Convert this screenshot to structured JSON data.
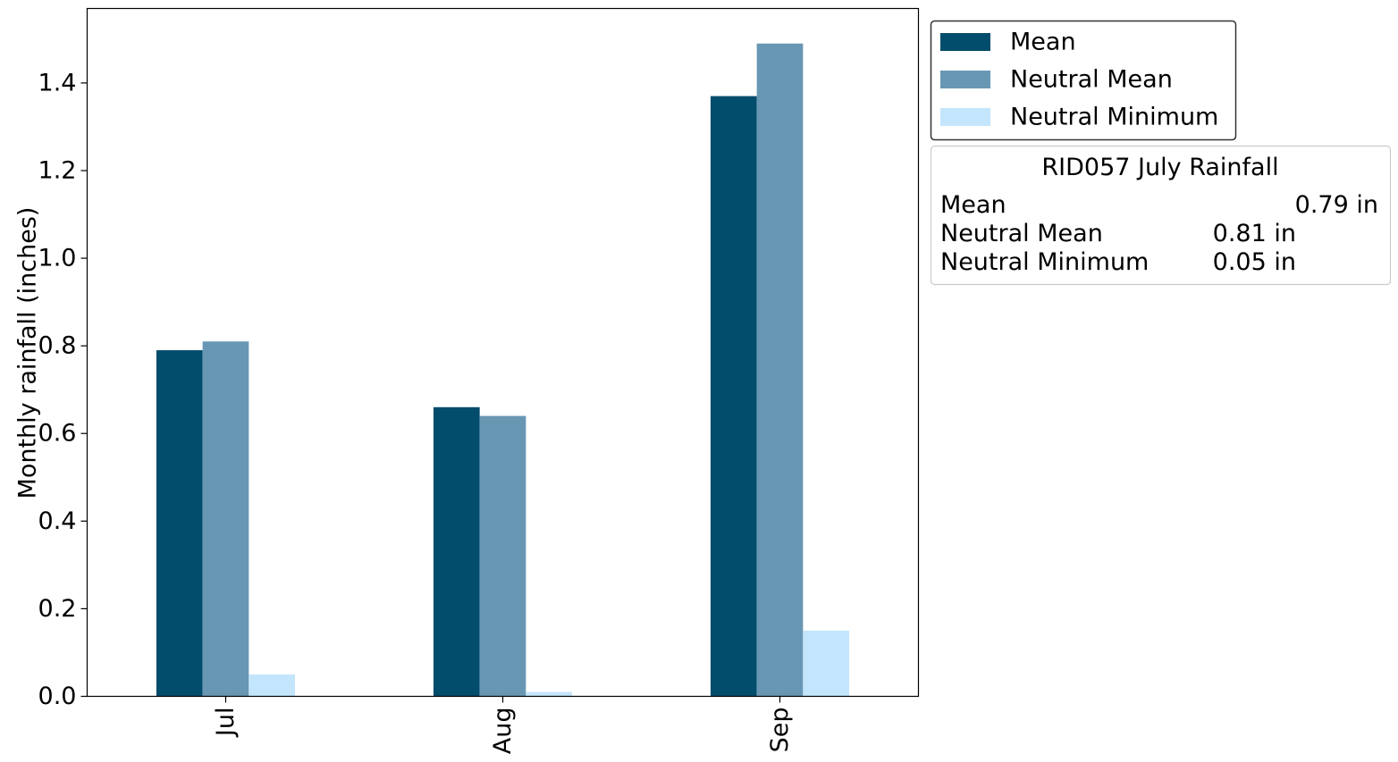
{
  "chart_data": {
    "type": "bar",
    "categories": [
      "Jul",
      "Aug",
      "Sep"
    ],
    "series": [
      {
        "name": "Mean",
        "values": [
          0.79,
          0.66,
          1.37
        ],
        "color": "#024C6C"
      },
      {
        "name": "Neutral Mean",
        "values": [
          0.81,
          0.64,
          1.49
        ],
        "color": "#6897B4"
      },
      {
        "name": "Neutral Minimum",
        "values": [
          0.05,
          0.01,
          0.15
        ],
        "color": "#C3E6FC"
      }
    ],
    "title": "",
    "xlabel": "",
    "ylabel": "Monthly rainfall (inches)",
    "ylim": [
      0,
      1.57
    ],
    "yticks": [
      0.0,
      0.2,
      0.4,
      0.6,
      0.8,
      1.0,
      1.2,
      1.4
    ],
    "ytick_labels": [
      "0.0",
      "0.2",
      "0.4",
      "0.6",
      "0.8",
      "1.0",
      "1.2",
      "1.4"
    ],
    "grid": false,
    "legend_position": "outside-top-right"
  },
  "stats_box": {
    "title": "RID057 July Rainfall",
    "rows": [
      {
        "label": "Mean",
        "value": "0.79 in"
      },
      {
        "label": "Neutral Mean",
        "value": "0.81 in"
      },
      {
        "label": "Neutral Minimum",
        "value": "0.05 in"
      }
    ]
  }
}
